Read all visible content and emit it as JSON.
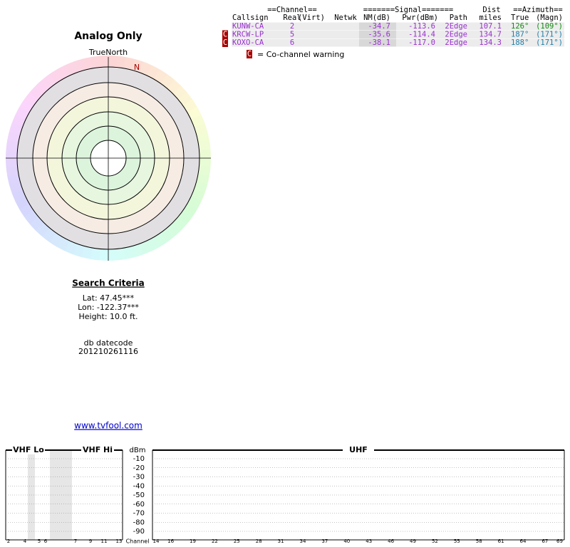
{
  "report": {
    "title": "Analog Only",
    "true_north": "TrueNorth",
    "north": "N"
  },
  "search": {
    "heading": "Search Criteria",
    "lat": "Lat: 47.45***",
    "lon": "Lon: -122.37***",
    "height": "Height: 10.0 ft.",
    "datecode_label": "db datecode",
    "datecode": "201210261116",
    "link": "www.tvfool.com"
  },
  "table": {
    "group_headers": [
      "==Channel==",
      "=======Signal=======",
      "Dist",
      "==Azimuth=="
    ],
    "columns": [
      "Callsign",
      "Real",
      "(Virt)",
      "Netwk",
      "NM(dB)",
      "Pwr(dBm)",
      "Path",
      "miles",
      "True",
      "(Magn)"
    ],
    "rows": [
      {
        "cells": [
          "KUNW-CA",
          "2",
          "-34.7",
          "-113.6",
          "2Edge",
          "107.1",
          "126°",
          "(109°)"
        ]
      },
      {
        "warning": "C",
        "cells": [
          "KRCW-LP",
          "5",
          "-35.6",
          "-114.4",
          "2Edge",
          "134.7",
          "187°",
          "(171°)"
        ]
      },
      {
        "warning": "C",
        "cells": [
          "KOXO-CA",
          "6",
          "-38.1",
          "-117.0",
          "2Edge",
          "134.3",
          "188°",
          "(171°)"
        ]
      }
    ]
  },
  "legend": {
    "marker": "C",
    "text": "= Co-channel warning"
  },
  "spectrum": {
    "bands": [
      "VHF Lo",
      "VHF Hi",
      "UHF"
    ],
    "unit": "dBm",
    "yticks": [
      -10,
      -20,
      -30,
      -40,
      -50,
      -60,
      -70,
      -80,
      -90
    ],
    "channel_label": "Channel",
    "vhf_channels": [
      2,
      4,
      5,
      6,
      7,
      9,
      11,
      13
    ],
    "uhf_channels": [
      14,
      16,
      19,
      22,
      25,
      28,
      31,
      34,
      37,
      40,
      43,
      46,
      49,
      52,
      55,
      58,
      61,
      64,
      67,
      69
    ]
  }
}
